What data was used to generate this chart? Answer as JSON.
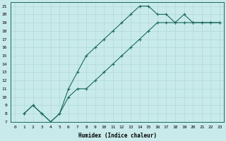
{
  "xlabel": "Humidex (Indice chaleur)",
  "background_color": "#c8eaea",
  "grid_color": "#b0d8d8",
  "line_color": "#1a6b5a",
  "xlim": [
    -0.5,
    23.5
  ],
  "ylim": [
    7,
    21.5
  ],
  "xticks": [
    0,
    1,
    2,
    3,
    4,
    5,
    6,
    7,
    8,
    9,
    10,
    11,
    12,
    13,
    14,
    15,
    16,
    17,
    18,
    19,
    20,
    21,
    22,
    23
  ],
  "yticks": [
    7,
    8,
    9,
    10,
    11,
    12,
    13,
    14,
    15,
    16,
    17,
    18,
    19,
    20,
    21
  ],
  "curve1_x": [
    1,
    2,
    3,
    4,
    5,
    6,
    7,
    8,
    9,
    10,
    11,
    12,
    13,
    14,
    15,
    16,
    17,
    18,
    19,
    20,
    21,
    22,
    23
  ],
  "curve1_y": [
    8,
    9,
    8,
    7,
    8,
    11,
    13,
    15,
    16,
    17,
    18,
    19,
    20,
    21,
    21,
    20,
    20,
    19,
    20,
    19,
    19,
    19,
    19
  ],
  "curve2_x": [
    1,
    2,
    3,
    4,
    5,
    6,
    7,
    8,
    9,
    10,
    11,
    12,
    13,
    14,
    15,
    16,
    17,
    18,
    19,
    20,
    21,
    22,
    23
  ],
  "curve2_y": [
    8,
    9,
    8,
    7,
    8,
    10,
    11,
    11,
    12,
    13,
    14,
    15,
    16,
    17,
    18,
    19,
    19,
    19,
    19,
    19,
    19,
    19,
    19
  ]
}
